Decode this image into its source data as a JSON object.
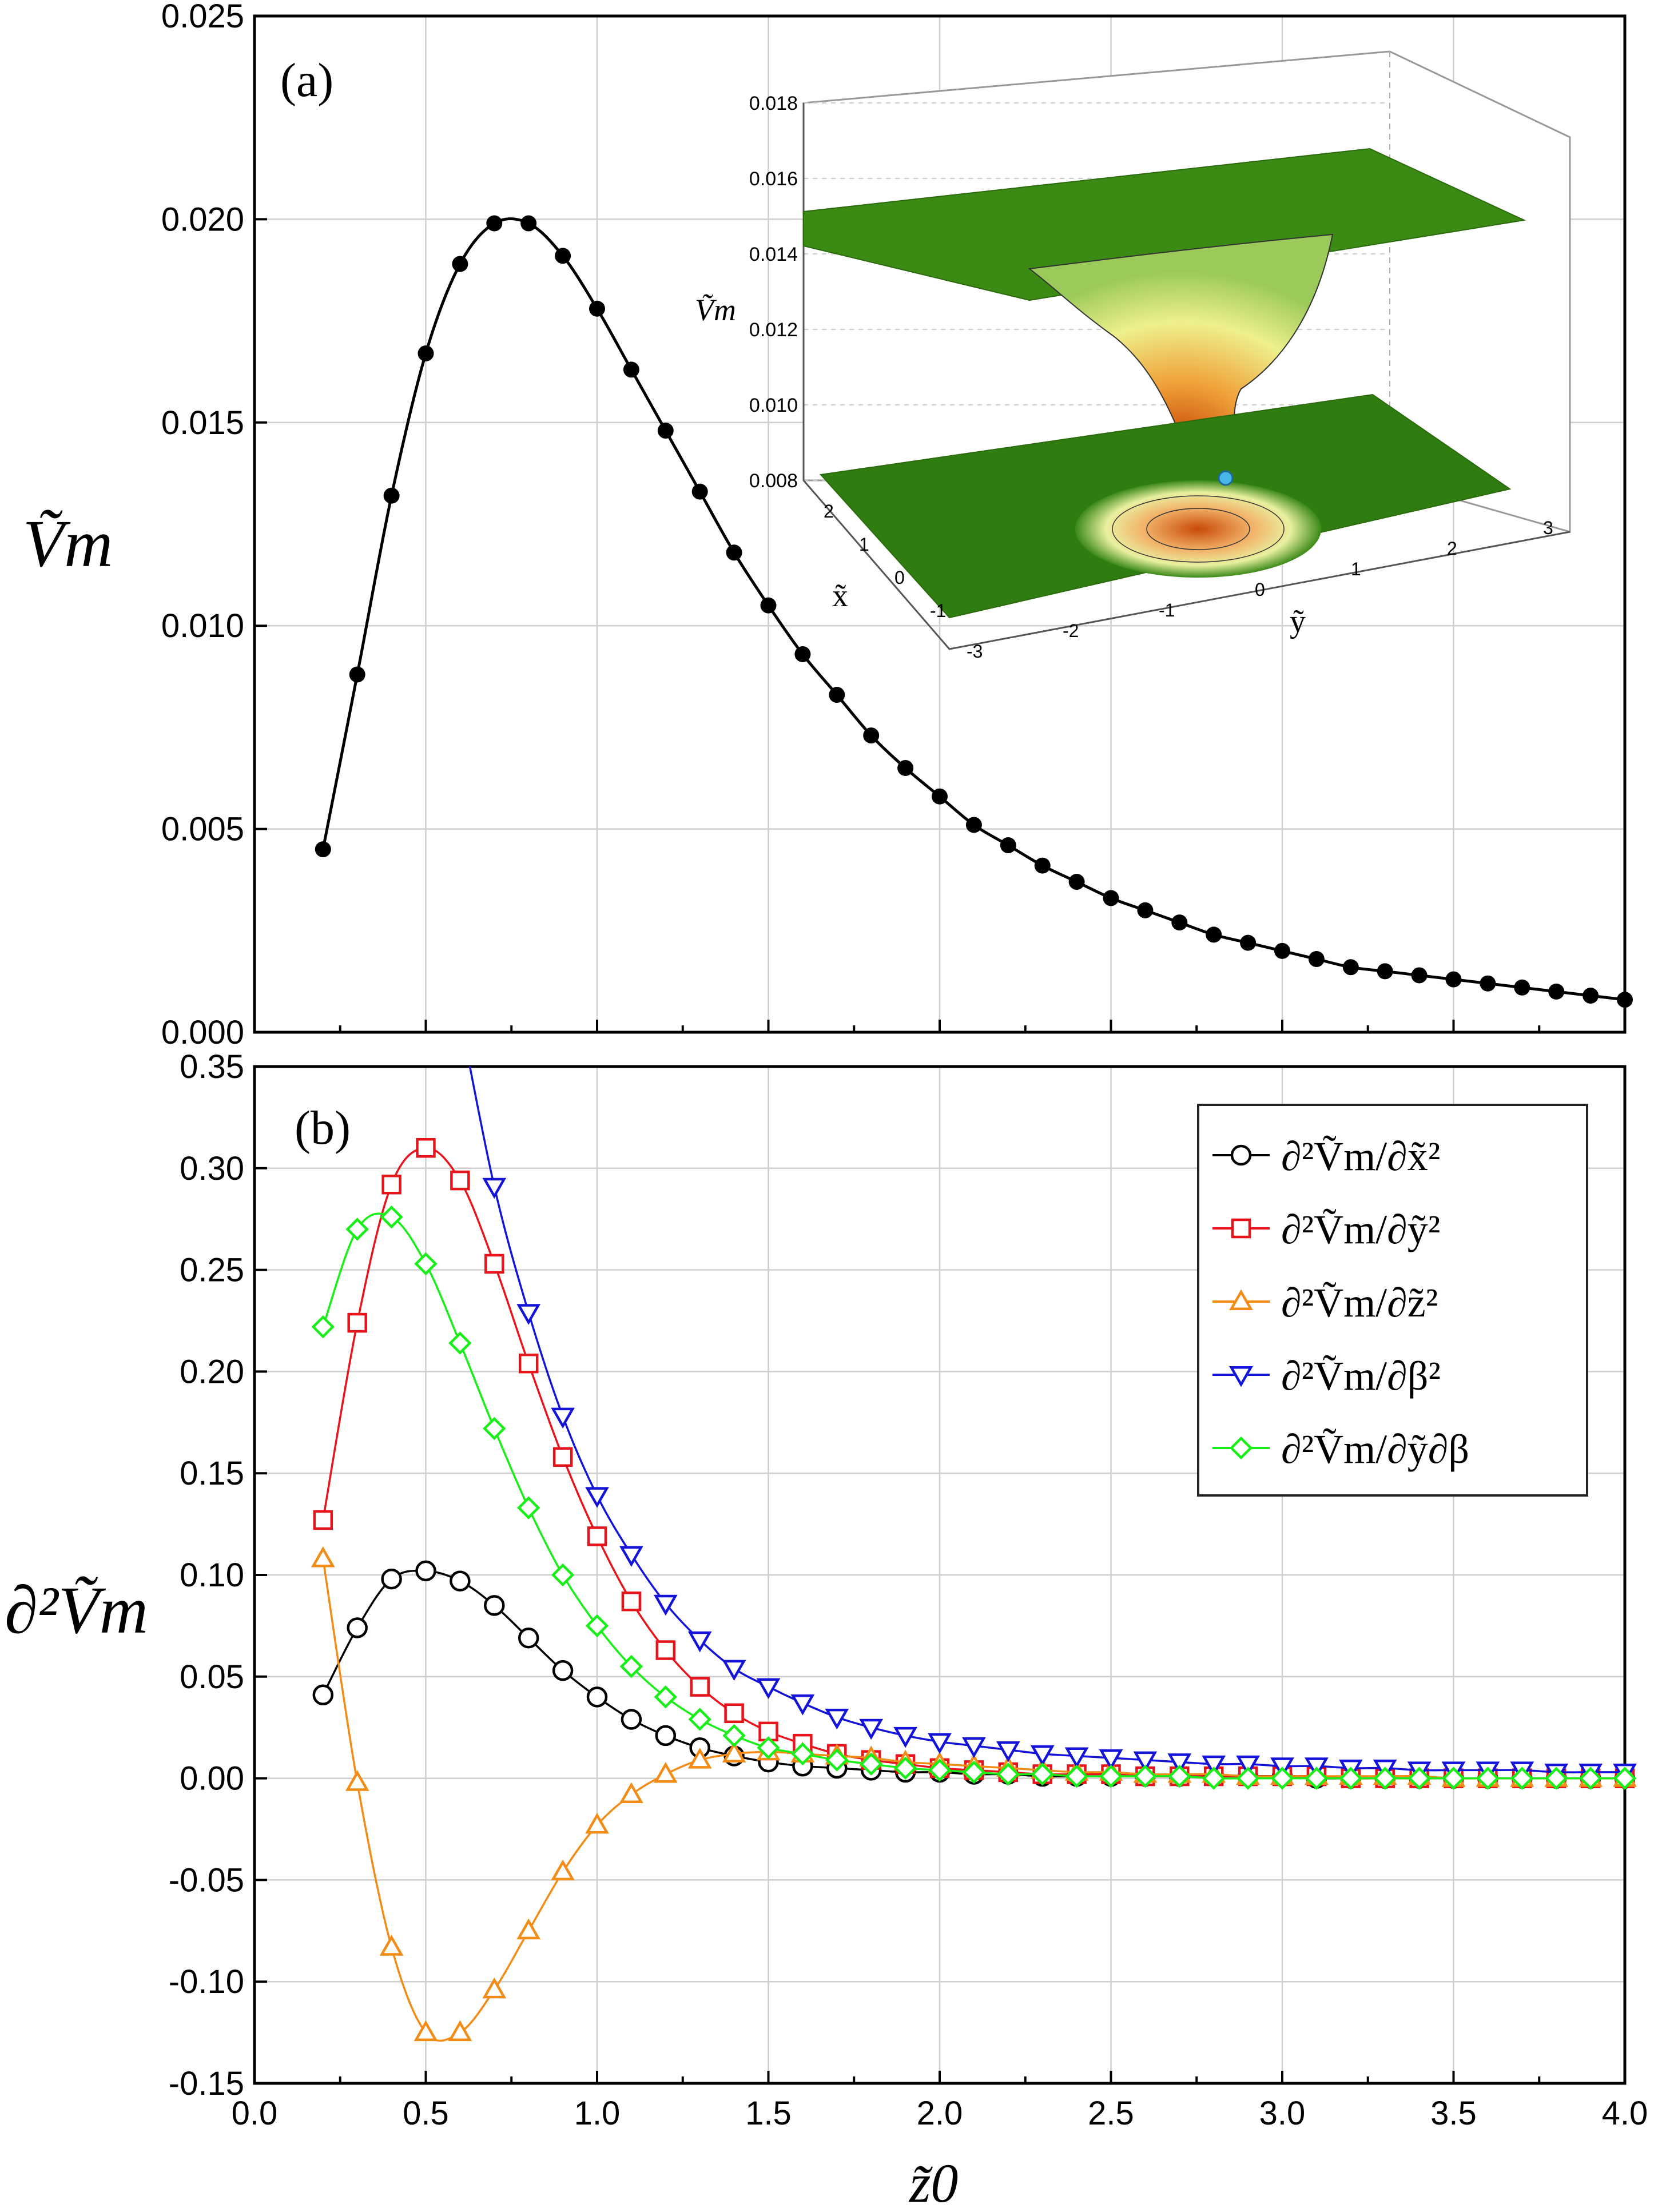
{
  "chart_data": [
    {
      "type": "line",
      "panel_label": "(a)",
      "ylabel": "Ṽm",
      "xlim": [
        0.0,
        4.0
      ],
      "ylim": [
        0.0,
        0.025
      ],
      "x_ticks": [
        "0.0",
        "0.5",
        "1.0",
        "1.5",
        "2.0",
        "2.5",
        "3.0",
        "3.5",
        "4.0"
      ],
      "y_ticks": [
        "0.000",
        "0.005",
        "0.010",
        "0.015",
        "0.020",
        "0.025"
      ],
      "grid": true,
      "series": [
        {
          "color": "#000000",
          "marker": "filled-circle",
          "x": [
            0.2,
            0.3,
            0.4,
            0.5,
            0.6,
            0.7,
            0.8,
            0.9,
            1.0,
            1.1,
            1.2,
            1.3,
            1.4,
            1.5,
            1.6,
            1.7,
            1.8,
            1.9,
            2.0,
            2.1,
            2.2,
            2.3,
            2.4,
            2.5,
            2.6,
            2.7,
            2.8,
            2.9,
            3.0,
            3.1,
            3.2,
            3.3,
            3.4,
            3.5,
            3.6,
            3.7,
            3.8,
            3.9,
            4.0
          ],
          "y": [
            0.0045,
            0.0088,
            0.0132,
            0.0167,
            0.0189,
            0.0199,
            0.0199,
            0.0191,
            0.0178,
            0.0163,
            0.0148,
            0.0133,
            0.0118,
            0.0105,
            0.0093,
            0.0083,
            0.0073,
            0.0065,
            0.0058,
            0.0051,
            0.0046,
            0.0041,
            0.0037,
            0.0033,
            0.003,
            0.0027,
            0.0024,
            0.0022,
            0.002,
            0.0018,
            0.0016,
            0.0015,
            0.0014,
            0.0013,
            0.0012,
            0.0011,
            0.001,
            0.0009,
            0.0008
          ]
        }
      ],
      "inset": {
        "type": "3d-surface",
        "zlabel": "Ṽm",
        "xlabel": "x̃",
        "ylabel": "ỹ",
        "z_ticks": [
          "0.008",
          "0.010",
          "0.012",
          "0.014",
          "0.016",
          "0.018"
        ],
        "x_ticks": [
          "2",
          "1",
          "0",
          "-1"
        ],
        "y_ticks": [
          "-3",
          "-2",
          "-1",
          "0",
          "1",
          "2",
          "3"
        ],
        "colors": {
          "plateau": "#2f7d10",
          "well_rim": "#e8f08a",
          "well_bottom": "#c84a08",
          "marker": "#49b7e8"
        }
      }
    },
    {
      "type": "line",
      "panel_label": "(b)",
      "ylabel": "∂²Ṽm",
      "xlabel": "z̃0",
      "xlim": [
        0.0,
        4.0
      ],
      "ylim": [
        -0.15,
        0.35
      ],
      "x_ticks": [
        "0.0",
        "0.5",
        "1.0",
        "1.5",
        "2.0",
        "2.5",
        "3.0",
        "3.5",
        "4.0"
      ],
      "y_ticks": [
        "-0.15",
        "-0.10",
        "-0.05",
        "0.00",
        "0.05",
        "0.10",
        "0.15",
        "0.20",
        "0.25",
        "0.30",
        "0.35"
      ],
      "grid": true,
      "legend_position": "top-right",
      "x": [
        0.2,
        0.3,
        0.4,
        0.5,
        0.6,
        0.7,
        0.8,
        0.9,
        1.0,
        1.1,
        1.2,
        1.3,
        1.4,
        1.5,
        1.6,
        1.7,
        1.8,
        1.9,
        2.0,
        2.1,
        2.2,
        2.3,
        2.4,
        2.5,
        2.6,
        2.7,
        2.8,
        2.9,
        3.0,
        3.1,
        3.2,
        3.3,
        3.4,
        3.5,
        3.6,
        3.7,
        3.8,
        3.9,
        4.0
      ],
      "series": [
        {
          "name": "∂²Ṽm/∂x̃²",
          "color": "#000000",
          "marker": "circle",
          "values": [
            0.041,
            0.074,
            0.098,
            0.102,
            0.097,
            0.085,
            0.069,
            0.053,
            0.04,
            0.029,
            0.021,
            0.015,
            0.011,
            0.008,
            0.006,
            0.005,
            0.004,
            0.003,
            0.003,
            0.002,
            0.002,
            0.001,
            0.001,
            0.001,
            0.001,
            0.001,
            0.001,
            0.001,
            0.001,
            0.0,
            0.0,
            0.0,
            0.0,
            0.0,
            0.0,
            0.0,
            0.0,
            0.0,
            0.0
          ]
        },
        {
          "name": "∂²Ṽm/∂ỹ²",
          "color": "#e8141c",
          "marker": "square",
          "values": [
            0.127,
            0.224,
            0.292,
            0.31,
            0.294,
            0.253,
            0.204,
            0.158,
            0.119,
            0.087,
            0.063,
            0.045,
            0.032,
            0.023,
            0.017,
            0.012,
            0.009,
            0.007,
            0.005,
            0.004,
            0.003,
            0.002,
            0.002,
            0.002,
            0.001,
            0.001,
            0.001,
            0.001,
            0.001,
            0.001,
            0.0,
            0.0,
            0.0,
            0.0,
            0.0,
            0.0,
            0.0,
            0.0,
            0.0
          ]
        },
        {
          "name": "∂²Ṽm/∂z̃²",
          "color": "#f38b17",
          "marker": "triangle-up",
          "values": [
            0.108,
            -0.002,
            -0.083,
            -0.125,
            -0.125,
            -0.104,
            -0.075,
            -0.046,
            -0.023,
            -0.008,
            0.002,
            0.009,
            0.012,
            0.013,
            0.012,
            0.011,
            0.01,
            0.008,
            0.007,
            0.006,
            0.005,
            0.004,
            0.003,
            0.003,
            0.002,
            0.002,
            0.002,
            0.001,
            0.001,
            0.001,
            0.001,
            0.001,
            0.001,
            0.0,
            0.0,
            0.0,
            0.0,
            0.0,
            0.0
          ]
        },
        {
          "name": "∂²Ṽm/∂β²",
          "color": "#1414d8",
          "marker": "triangle-down",
          "x": [
            0.7,
            0.8,
            0.9,
            1.0,
            1.1,
            1.2,
            1.3,
            1.4,
            1.5,
            1.6,
            1.7,
            1.8,
            1.9,
            2.0,
            2.1,
            2.2,
            2.3,
            2.4,
            2.5,
            2.6,
            2.7,
            2.8,
            2.9,
            3.0,
            3.1,
            3.2,
            3.3,
            3.4,
            3.5,
            3.6,
            3.7,
            3.8,
            3.9,
            4.0
          ],
          "values": [
            0.291,
            0.229,
            0.178,
            0.139,
            0.11,
            0.086,
            0.068,
            0.054,
            0.045,
            0.037,
            0.03,
            0.025,
            0.021,
            0.018,
            0.016,
            0.014,
            0.012,
            0.011,
            0.01,
            0.009,
            0.008,
            0.007,
            0.007,
            0.006,
            0.006,
            0.005,
            0.005,
            0.004,
            0.004,
            0.004,
            0.004,
            0.003,
            0.003,
            0.003
          ]
        },
        {
          "name": "∂²Ṽm/∂ỹ∂β",
          "color": "#18ee18",
          "marker": "diamond",
          "values": [
            0.222,
            0.27,
            0.276,
            0.253,
            0.214,
            0.172,
            0.133,
            0.1,
            0.075,
            0.055,
            0.04,
            0.029,
            0.021,
            0.015,
            0.012,
            0.009,
            0.007,
            0.005,
            0.004,
            0.003,
            0.002,
            0.002,
            0.001,
            0.001,
            0.001,
            0.001,
            0.0,
            0.0,
            0.0,
            0.0,
            0.0,
            0.0,
            0.0,
            0.0,
            0.0,
            0.0,
            0.0,
            0.0,
            0.0
          ]
        }
      ]
    }
  ]
}
